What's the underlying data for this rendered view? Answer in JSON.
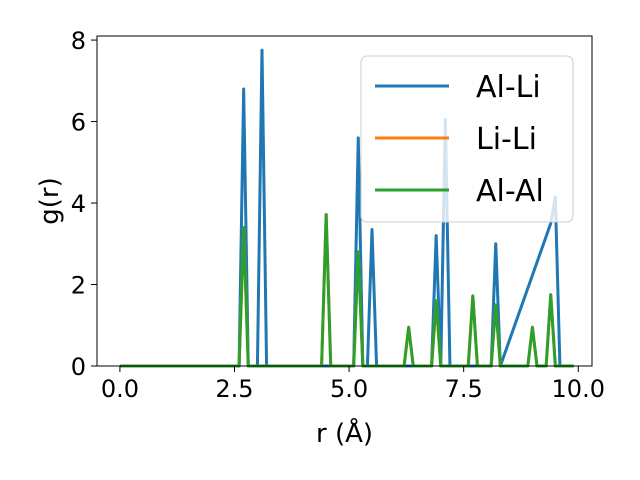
{
  "chart_data": {
    "type": "line",
    "title": "",
    "xlabel": "r (Å)",
    "ylabel": "g(r)",
    "xlim": [
      -0.5,
      10.3
    ],
    "ylim": [
      0,
      8.1
    ],
    "xticks": [
      0.0,
      2.5,
      5.0,
      7.5,
      10.0
    ],
    "xtick_labels": [
      "0.0",
      "2.5",
      "5.0",
      "7.5",
      "10.0"
    ],
    "yticks": [
      0,
      2,
      4,
      6,
      8
    ],
    "ytick_labels": [
      "0",
      "2",
      "4",
      "6",
      "8"
    ],
    "grid": false,
    "legend_position": "top-right",
    "series": [
      {
        "name": "Al-Li",
        "color": "#1f77b4",
        "x": [
          0.0,
          2.6,
          2.7,
          2.8,
          3.0,
          3.1,
          3.2,
          5.1,
          5.2,
          5.3,
          5.4,
          5.5,
          5.6,
          6.8,
          6.9,
          7.0,
          7.1,
          7.2,
          8.1,
          8.2,
          8.3,
          9.4,
          9.5,
          9.6,
          9.9
        ],
        "y": [
          0,
          0,
          6.8,
          0,
          0,
          7.75,
          0,
          0,
          5.6,
          0,
          0,
          3.35,
          0,
          0,
          3.2,
          0,
          6.05,
          0,
          0,
          3.0,
          0,
          3.5,
          4.15,
          0,
          0
        ]
      },
      {
        "name": "Li-Li",
        "color": "#ff7f0e",
        "x": [
          0.0,
          2.6,
          2.7,
          2.8,
          4.4,
          4.5,
          4.6,
          5.1,
          5.2,
          5.3,
          6.2,
          6.3,
          6.4,
          6.8,
          6.9,
          7.0,
          7.6,
          7.7,
          7.8,
          8.1,
          8.2,
          8.3,
          8.9,
          9.0,
          9.1,
          9.3,
          9.4,
          9.5,
          9.9
        ],
        "y": [
          0,
          0,
          3.4,
          0,
          0,
          3.72,
          0,
          0,
          2.8,
          0,
          0,
          0.95,
          0,
          0,
          1.6,
          0,
          0,
          1.72,
          0,
          0,
          1.5,
          0,
          0,
          0.95,
          0,
          0,
          1.75,
          0,
          0
        ]
      },
      {
        "name": "Al-Al",
        "color": "#2ca02c",
        "x": [
          0.0,
          2.6,
          2.7,
          2.8,
          4.4,
          4.5,
          4.6,
          5.1,
          5.2,
          5.3,
          6.2,
          6.3,
          6.4,
          6.8,
          6.9,
          7.0,
          7.6,
          7.7,
          7.8,
          8.1,
          8.2,
          8.3,
          8.9,
          9.0,
          9.1,
          9.3,
          9.4,
          9.5,
          9.9
        ],
        "y": [
          0,
          0,
          3.4,
          0,
          0,
          3.72,
          0,
          0,
          2.8,
          0,
          0,
          0.95,
          0,
          0,
          1.6,
          0,
          0,
          1.72,
          0,
          0,
          1.5,
          0,
          0,
          0.95,
          0,
          0,
          1.75,
          0,
          0
        ]
      }
    ]
  }
}
